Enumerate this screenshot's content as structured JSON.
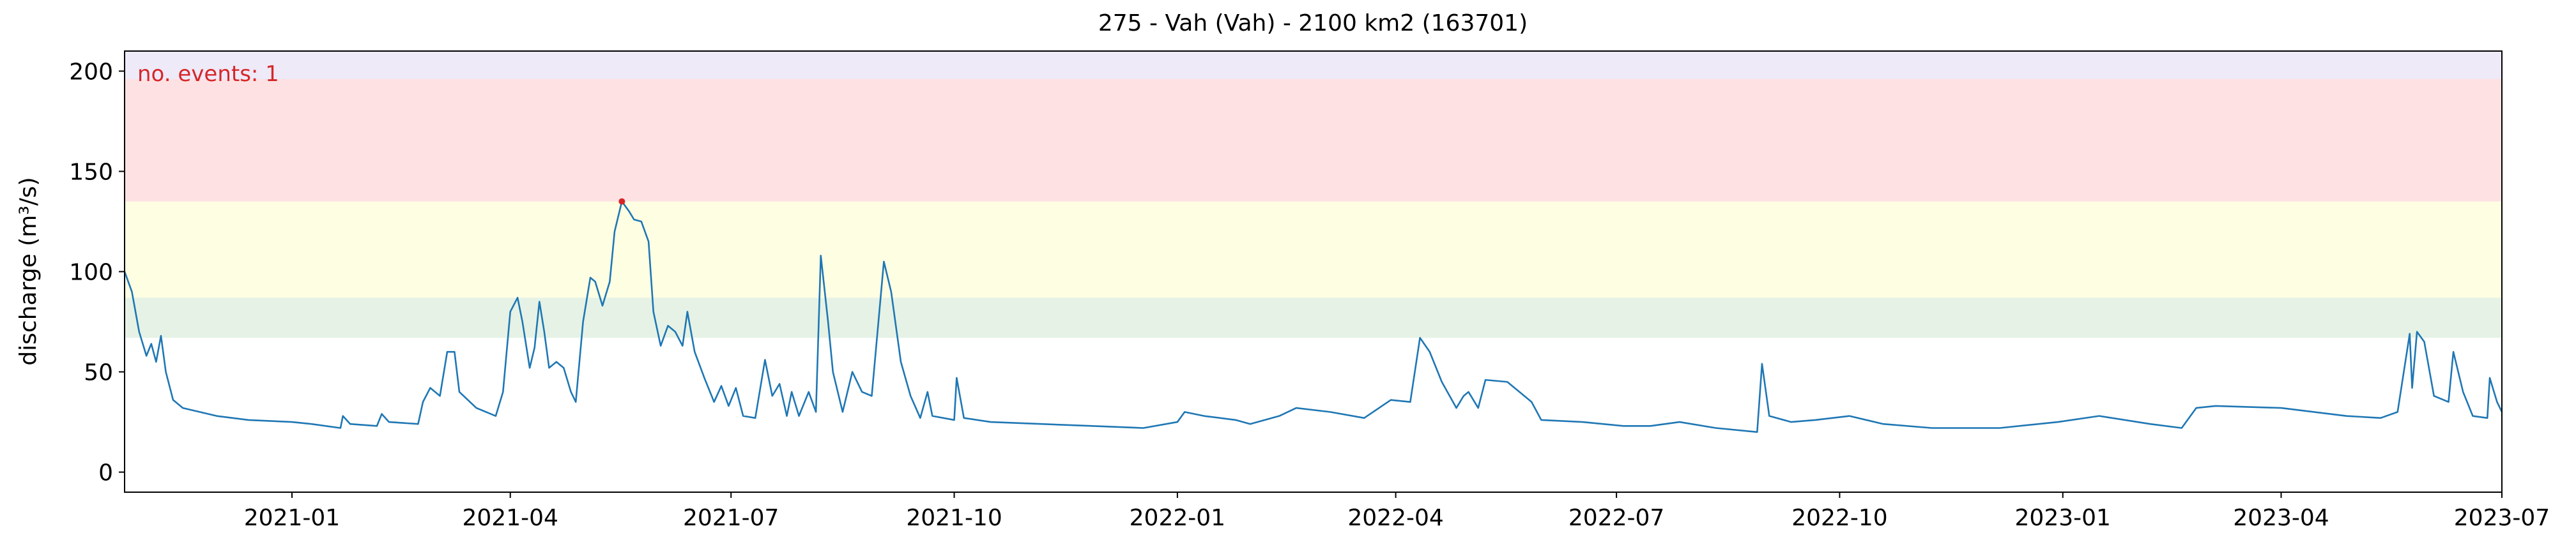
{
  "chart_data": {
    "type": "line",
    "title": "275 - Vah (Vah) - 2100 km2 (163701)",
    "y_label": "discharge (m³/s)",
    "annotation": {
      "text": "no. events: 1",
      "color": "#d62728"
    },
    "xlim": [
      "2020-10-24",
      "2023-07-01"
    ],
    "xticks": [
      {
        "value": "2021-01-01",
        "label": "2021-01"
      },
      {
        "value": "2021-04-01",
        "label": "2021-04"
      },
      {
        "value": "2021-07-01",
        "label": "2021-07"
      },
      {
        "value": "2021-10-01",
        "label": "2021-10"
      },
      {
        "value": "2022-01-01",
        "label": "2022-01"
      },
      {
        "value": "2022-04-01",
        "label": "2022-04"
      },
      {
        "value": "2022-07-01",
        "label": "2022-07"
      },
      {
        "value": "2022-10-01",
        "label": "2022-10"
      },
      {
        "value": "2023-01-01",
        "label": "2023-01"
      },
      {
        "value": "2023-04-01",
        "label": "2023-04"
      },
      {
        "value": "2023-07-01",
        "label": "2023-07"
      }
    ],
    "ylim": [
      -10,
      210
    ],
    "yticks": [
      0,
      50,
      100,
      150,
      200
    ],
    "bands": [
      {
        "from": 67,
        "to": 87,
        "color": "#e5f2e5"
      },
      {
        "from": 87,
        "to": 135,
        "color": "#fefee3"
      },
      {
        "from": 135,
        "to": 196,
        "color": "#fee1e3"
      },
      {
        "from": 196,
        "to": 210,
        "color": "#efeaf8"
      }
    ],
    "x": [
      "2020-10-24",
      "2020-10-27",
      "2020-10-30",
      "2020-11-02",
      "2020-11-04",
      "2020-11-06",
      "2020-11-08",
      "2020-11-10",
      "2020-11-13",
      "2020-11-17",
      "2020-12-01",
      "2020-12-14",
      "2021-01-01",
      "2021-01-09",
      "2021-01-21",
      "2021-01-22",
      "2021-01-25",
      "2021-02-05",
      "2021-02-07",
      "2021-02-10",
      "2021-02-22",
      "2021-02-24",
      "2021-02-27",
      "2021-03-03",
      "2021-03-06",
      "2021-03-09",
      "2021-03-11",
      "2021-03-18",
      "2021-03-26",
      "2021-03-29",
      "2021-04-01",
      "2021-04-04",
      "2021-04-06",
      "2021-04-09",
      "2021-04-11",
      "2021-04-13",
      "2021-04-15",
      "2021-04-17",
      "2021-04-20",
      "2021-04-23",
      "2021-04-26",
      "2021-04-28",
      "2021-05-01",
      "2021-05-04",
      "2021-05-06",
      "2021-05-09",
      "2021-05-12",
      "2021-05-14",
      "2021-05-17",
      "2021-05-20",
      "2021-05-22",
      "2021-05-25",
      "2021-05-28",
      "2021-05-30",
      "2021-06-02",
      "2021-06-05",
      "2021-06-08",
      "2021-06-11",
      "2021-06-13",
      "2021-06-16",
      "2021-06-20",
      "2021-06-24",
      "2021-06-27",
      "2021-06-30",
      "2021-07-03",
      "2021-07-06",
      "2021-07-11",
      "2021-07-15",
      "2021-07-18",
      "2021-07-21",
      "2021-07-24",
      "2021-07-26",
      "2021-07-29",
      "2021-08-02",
      "2021-08-05",
      "2021-08-07",
      "2021-08-10",
      "2021-08-12",
      "2021-08-16",
      "2021-08-20",
      "2021-08-24",
      "2021-08-28",
      "2021-09-02",
      "2021-09-05",
      "2021-09-09",
      "2021-09-13",
      "2021-09-17",
      "2021-09-20",
      "2021-09-22",
      "2021-10-01",
      "2021-10-02",
      "2021-10-05",
      "2021-10-16",
      "2021-11-06",
      "2021-11-27",
      "2021-12-18",
      "2022-01-01",
      "2022-01-04",
      "2022-01-12",
      "2022-01-25",
      "2022-01-31",
      "2022-02-12",
      "2022-02-19",
      "2022-03-05",
      "2022-03-19",
      "2022-03-30",
      "2022-04-07",
      "2022-04-11",
      "2022-04-15",
      "2022-04-20",
      "2022-04-26",
      "2022-04-29",
      "2022-05-01",
      "2022-05-05",
      "2022-05-08",
      "2022-05-17",
      "2022-05-27",
      "2022-05-31",
      "2022-06-17",
      "2022-07-04",
      "2022-07-15",
      "2022-07-27",
      "2022-08-11",
      "2022-08-28",
      "2022-08-30",
      "2022-09-02",
      "2022-09-11",
      "2022-09-21",
      "2022-10-05",
      "2022-10-19",
      "2022-11-08",
      "2022-12-06",
      "2022-12-30",
      "2023-01-16",
      "2023-02-06",
      "2023-02-19",
      "2023-02-25",
      "2023-03-05",
      "2023-04-01",
      "2023-04-28",
      "2023-05-12",
      "2023-05-19",
      "2023-05-24",
      "2023-05-25",
      "2023-05-27",
      "2023-05-30",
      "2023-06-03",
      "2023-06-09",
      "2023-06-11",
      "2023-06-15",
      "2023-06-19",
      "2023-06-25",
      "2023-06-26",
      "2023-06-29",
      "2023-07-01"
    ],
    "series": [
      {
        "name": "discharge",
        "color": "#1f77b4",
        "values": [
          100,
          90,
          70,
          58,
          64,
          55,
          68,
          50,
          36,
          32,
          28,
          26,
          25,
          24,
          22,
          28,
          24,
          23,
          29,
          25,
          24,
          35,
          42,
          38,
          60,
          60,
          40,
          32,
          28,
          40,
          80,
          87,
          75,
          52,
          62,
          85,
          70,
          52,
          55,
          52,
          40,
          35,
          75,
          97,
          95,
          83,
          95,
          120,
          135,
          130,
          126,
          125,
          115,
          80,
          63,
          73,
          70,
          63,
          80,
          60,
          47,
          35,
          43,
          33,
          42,
          28,
          27,
          56,
          38,
          44,
          28,
          40,
          28,
          40,
          30,
          108,
          75,
          50,
          30,
          50,
          40,
          38,
          105,
          90,
          55,
          38,
          27,
          40,
          28,
          26,
          47,
          27,
          25,
          24,
          23,
          22,
          25,
          30,
          28,
          26,
          24,
          28,
          32,
          30,
          27,
          36,
          35,
          67,
          60,
          45,
          32,
          38,
          40,
          32,
          46,
          45,
          35,
          26,
          25,
          23,
          23,
          25,
          22,
          20,
          54,
          28,
          25,
          26,
          28,
          24,
          22,
          22,
          25,
          28,
          24,
          22,
          32,
          33,
          32,
          28,
          27,
          30,
          69,
          42,
          70,
          65,
          38,
          35,
          60,
          40,
          28,
          27,
          47,
          35,
          30
        ]
      }
    ],
    "events": {
      "x": [
        "2021-05-17"
      ],
      "values": [
        135
      ],
      "color": "#d62728"
    }
  }
}
